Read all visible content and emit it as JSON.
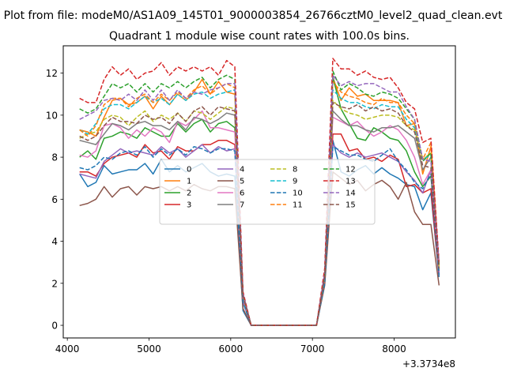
{
  "chart_data": {
    "type": "line",
    "suptitle": "Plot from file: modeM0/AS1A09_145T01_9000003854_26766cztM0_level2_quad_clean.evt",
    "title": "Quadrant 1 module wise count rates with 100.0s bins.",
    "xlabel": "",
    "ylabel": "",
    "offset_label": "+3.3734e8",
    "xlim": [
      3950,
      8750
    ],
    "ylim": [
      -0.6,
      13.3
    ],
    "xticks": [
      4000,
      5000,
      6000,
      7000,
      8000
    ],
    "yticks": [
      0,
      2,
      4,
      6,
      8,
      10,
      12
    ],
    "grid": false,
    "legend": {
      "location": "center",
      "columns": 4
    },
    "x": [
      4150,
      4250,
      4350,
      4450,
      4550,
      4650,
      4750,
      4850,
      4950,
      5050,
      5150,
      5250,
      5350,
      5450,
      5550,
      5650,
      5750,
      5850,
      5950,
      6050,
      6150,
      6250,
      6350,
      6450,
      6550,
      6650,
      6750,
      6850,
      6950,
      7050,
      7150,
      7250,
      7350,
      7450,
      7550,
      7650,
      7750,
      7850,
      7950,
      8050,
      8150,
      8250,
      8350,
      8450,
      8550
    ],
    "series": [
      {
        "name": "0",
        "color": "#1f77b4",
        "dash": "solid",
        "values": [
          7.2,
          6.6,
          6.8,
          7.6,
          7.2,
          7.3,
          7.4,
          7.4,
          7.7,
          7.2,
          7.9,
          7.3,
          7.6,
          7.3,
          7.5,
          7.7,
          7.3,
          7.1,
          7.2,
          7.1,
          0.7,
          0,
          0,
          0,
          0,
          0,
          0,
          0,
          0,
          0,
          2.0,
          8.8,
          7.3,
          7.1,
          7.4,
          7.6,
          7.2,
          7.5,
          7.2,
          7.0,
          6.7,
          6.6,
          5.5,
          6.3,
          2.3
        ]
      },
      {
        "name": "1",
        "color": "#ff7f0e",
        "dash": "solid",
        "values": [
          9.3,
          9.2,
          9.0,
          9.9,
          10.7,
          10.8,
          10.5,
          10.6,
          10.9,
          10.3,
          10.9,
          10.5,
          11.0,
          10.7,
          11.1,
          11.7,
          11.0,
          11.6,
          11.1,
          11.0,
          1.5,
          0,
          0,
          0,
          0,
          0,
          0,
          0,
          0,
          0,
          2.1,
          11.8,
          10.7,
          11.3,
          10.9,
          11.0,
          10.7,
          10.7,
          10.7,
          10.6,
          9.5,
          9.6,
          7.2,
          8.5,
          2.8
        ]
      },
      {
        "name": "2",
        "color": "#2ca02c",
        "dash": "solid",
        "values": [
          8.0,
          8.3,
          7.9,
          8.9,
          9.0,
          9.2,
          9.1,
          8.9,
          9.4,
          9.2,
          9.0,
          9.0,
          9.6,
          9.2,
          9.6,
          9.8,
          9.2,
          9.6,
          9.7,
          9.4,
          1.2,
          0,
          0,
          0,
          0,
          0,
          0,
          0,
          0,
          0,
          2.2,
          11.8,
          10.3,
          9.6,
          8.9,
          8.8,
          9.4,
          9.2,
          8.9,
          8.8,
          8.3,
          7.3,
          6.6,
          7.1,
          2.6
        ]
      },
      {
        "name": "3",
        "color": "#d62728",
        "dash": "solid",
        "values": [
          7.3,
          7.3,
          7.1,
          7.7,
          8.0,
          8.1,
          8.2,
          8.0,
          8.6,
          8.2,
          8.3,
          7.9,
          8.5,
          8.3,
          8.3,
          8.6,
          8.6,
          8.8,
          8.8,
          8.6,
          1.2,
          0,
          0,
          0,
          0,
          0,
          0,
          0,
          0,
          0,
          2.1,
          9.1,
          9.1,
          8.3,
          8.4,
          7.9,
          8.0,
          7.8,
          8.1,
          7.9,
          6.6,
          6.7,
          6.3,
          6.5,
          2.4
        ]
      },
      {
        "name": "4",
        "color": "#9467bd",
        "dash": "solid",
        "values": [
          7.2,
          7.1,
          7.0,
          7.8,
          8.1,
          8.4,
          8.2,
          8.3,
          8.2,
          8.1,
          8.5,
          8.2,
          8.4,
          8.0,
          8.3,
          8.6,
          8.2,
          8.5,
          8.3,
          8.4,
          1.1,
          0,
          0,
          0,
          0,
          0,
          0,
          0,
          0,
          0,
          2.0,
          8.6,
          8.2,
          8.0,
          8.2,
          8.0,
          8.1,
          8.2,
          8.0,
          7.8,
          7.3,
          6.9,
          6.3,
          7.4,
          2.5
        ]
      },
      {
        "name": "5",
        "color": "#8c564b",
        "dash": "solid",
        "values": [
          5.7,
          5.8,
          6.0,
          6.6,
          6.1,
          6.5,
          6.6,
          6.2,
          6.6,
          6.5,
          6.6,
          6.4,
          6.6,
          6.4,
          6.7,
          6.5,
          6.4,
          6.6,
          6.6,
          6.5,
          0.8,
          0,
          0,
          0,
          0,
          0,
          0,
          0,
          0,
          0,
          1.9,
          7.3,
          7.0,
          6.7,
          6.9,
          6.4,
          6.7,
          6.9,
          6.6,
          6.0,
          6.8,
          5.4,
          4.8,
          4.8,
          1.9
        ]
      },
      {
        "name": "6",
        "color": "#e377c2",
        "dash": "solid",
        "values": [
          8.1,
          8.0,
          8.3,
          9.5,
          9.6,
          9.4,
          8.9,
          9.3,
          9.0,
          9.4,
          9.2,
          8.7,
          9.7,
          9.5,
          9.8,
          10.2,
          9.4,
          9.4,
          9.3,
          9.2,
          1.3,
          0,
          0,
          0,
          0,
          0,
          0,
          0,
          0,
          0,
          2.2,
          9.9,
          9.7,
          9.5,
          9.7,
          9.3,
          9.0,
          9.2,
          9.5,
          9.3,
          8.8,
          8.0,
          6.7,
          7.4,
          2.7
        ]
      },
      {
        "name": "7",
        "color": "#7f7f7f",
        "dash": "solid",
        "values": [
          8.8,
          8.7,
          8.6,
          9.1,
          9.6,
          9.5,
          9.3,
          9.6,
          9.7,
          9.5,
          9.5,
          9.3,
          9.7,
          9.3,
          9.9,
          9.8,
          9.6,
          9.8,
          10.1,
          10.0,
          1.4,
          0,
          0,
          0,
          0,
          0,
          0,
          0,
          0,
          0,
          2.3,
          10.2,
          9.8,
          9.5,
          9.5,
          9.3,
          9.2,
          9.4,
          9.4,
          9.5,
          9.2,
          8.9,
          7.4,
          8.0,
          2.8
        ]
      },
      {
        "name": "8",
        "color": "#bcbd22",
        "dash": "dashed",
        "values": [
          8.9,
          9.1,
          9.2,
          9.8,
          10.0,
          9.9,
          9.5,
          9.9,
          10.2,
          9.7,
          10.0,
          9.8,
          10.1,
          9.7,
          10.2,
          10.1,
          9.8,
          10.1,
          10.4,
          10.3,
          1.4,
          0,
          0,
          0,
          0,
          0,
          0,
          0,
          0,
          0,
          2.3,
          10.7,
          10.3,
          10.1,
          10.0,
          9.8,
          9.9,
          10.0,
          10.0,
          9.9,
          9.5,
          9.3,
          7.9,
          8.2,
          2.8
        ]
      },
      {
        "name": "9",
        "color": "#17becf",
        "dash": "dashed",
        "values": [
          9.3,
          9.1,
          9.6,
          10.3,
          10.5,
          10.5,
          10.3,
          10.6,
          10.9,
          10.6,
          10.8,
          10.5,
          11.0,
          10.7,
          11.0,
          11.1,
          10.8,
          11.0,
          11.1,
          11.2,
          1.5,
          0,
          0,
          0,
          0,
          0,
          0,
          0,
          0,
          0,
          2.4,
          11.2,
          10.8,
          10.6,
          10.6,
          10.4,
          10.3,
          10.5,
          10.4,
          10.4,
          9.8,
          9.4,
          7.9,
          8.1,
          2.9
        ]
      },
      {
        "name": "10",
        "color": "#1f77b4",
        "dash": "dashed",
        "values": [
          7.5,
          7.4,
          7.6,
          8.0,
          7.9,
          8.2,
          8.3,
          8.1,
          8.5,
          8.0,
          8.4,
          8.1,
          8.4,
          8.1,
          8.5,
          8.4,
          8.2,
          8.4,
          8.4,
          8.3,
          1.1,
          0,
          0,
          0,
          0,
          0,
          0,
          0,
          0,
          0,
          2.0,
          8.5,
          8.3,
          8.1,
          8.1,
          7.9,
          7.8,
          8.1,
          8.4,
          7.8,
          7.4,
          6.8,
          6.5,
          7.2,
          2.4
        ]
      },
      {
        "name": "11",
        "color": "#ff7f0e",
        "dash": "dashed",
        "values": [
          9.3,
          9.0,
          9.5,
          10.5,
          10.8,
          10.8,
          10.4,
          10.8,
          11.0,
          10.6,
          11.0,
          10.7,
          11.1,
          10.8,
          11.2,
          11.4,
          11.0,
          11.3,
          11.5,
          11.3,
          1.5,
          0,
          0,
          0,
          0,
          0,
          0,
          0,
          0,
          0,
          2.4,
          11.6,
          11.1,
          10.9,
          10.8,
          10.6,
          10.5,
          10.8,
          10.6,
          10.6,
          10.0,
          9.6,
          7.9,
          8.7,
          2.9
        ]
      },
      {
        "name": "12",
        "color": "#2ca02c",
        "dash": "dashed",
        "values": [
          10.3,
          10.1,
          10.3,
          10.9,
          11.5,
          11.3,
          11.5,
          11.1,
          11.5,
          11.1,
          11.5,
          11.3,
          11.6,
          11.3,
          11.6,
          11.8,
          11.3,
          11.7,
          11.9,
          11.7,
          1.5,
          0,
          0,
          0,
          0,
          0,
          0,
          0,
          0,
          0,
          2.5,
          12.1,
          11.2,
          11.5,
          11.3,
          11.0,
          10.9,
          11.1,
          11.0,
          10.8,
          10.3,
          9.8,
          7.8,
          8.2,
          2.9
        ]
      },
      {
        "name": "13",
        "color": "#d62728",
        "dash": "dashed",
        "values": [
          10.8,
          10.6,
          10.6,
          11.7,
          12.3,
          11.9,
          12.2,
          11.7,
          12.0,
          12.1,
          12.5,
          11.9,
          12.3,
          12.1,
          12.3,
          12.1,
          12.3,
          11.9,
          12.6,
          12.3,
          1.6,
          0,
          0,
          0,
          0,
          0,
          0,
          0,
          0,
          0,
          2.7,
          12.7,
          12.2,
          12.2,
          11.9,
          12.1,
          11.8,
          11.7,
          11.8,
          11.3,
          10.6,
          10.3,
          8.7,
          8.9,
          3.0
        ]
      },
      {
        "name": "14",
        "color": "#9467bd",
        "dash": "dashed",
        "values": [
          9.8,
          10.0,
          10.2,
          10.7,
          10.8,
          10.7,
          11.0,
          10.7,
          11.2,
          10.7,
          11.2,
          10.7,
          11.2,
          10.8,
          11.1,
          11.0,
          11.2,
          11.3,
          11.5,
          11.5,
          1.5,
          0,
          0,
          0,
          0,
          0,
          0,
          0,
          0,
          0,
          2.5,
          11.9,
          11.4,
          11.6,
          11.4,
          11.5,
          11.5,
          11.3,
          11.1,
          11.1,
          10.4,
          9.8,
          7.9,
          7.8,
          3.0
        ]
      },
      {
        "name": "15",
        "color": "#8c564b",
        "dash": "dashed",
        "values": [
          9.0,
          8.8,
          9.0,
          9.5,
          9.9,
          9.7,
          9.7,
          9.6,
          10.0,
          9.8,
          9.9,
          9.6,
          10.1,
          9.7,
          10.2,
          10.4,
          10.0,
          10.4,
          10.3,
          10.2,
          1.4,
          0,
          0,
          0,
          0,
          0,
          0,
          0,
          0,
          0,
          2.3,
          10.6,
          10.4,
          10.3,
          10.5,
          10.2,
          10.4,
          10.2,
          10.3,
          10.1,
          9.5,
          9.2,
          7.6,
          7.5,
          2.7
        ]
      }
    ]
  }
}
